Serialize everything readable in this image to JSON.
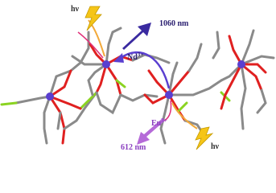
{
  "labels": {
    "hv_top": "hν",
    "emission_nd": "1060 nm",
    "nd": {
      "element": "Nd",
      "charge": "3+"
    },
    "eu": {
      "element": "Eu",
      "charge": "3+"
    },
    "emission_eu": "612 nm",
    "hv_bottom": "hν"
  }
}
